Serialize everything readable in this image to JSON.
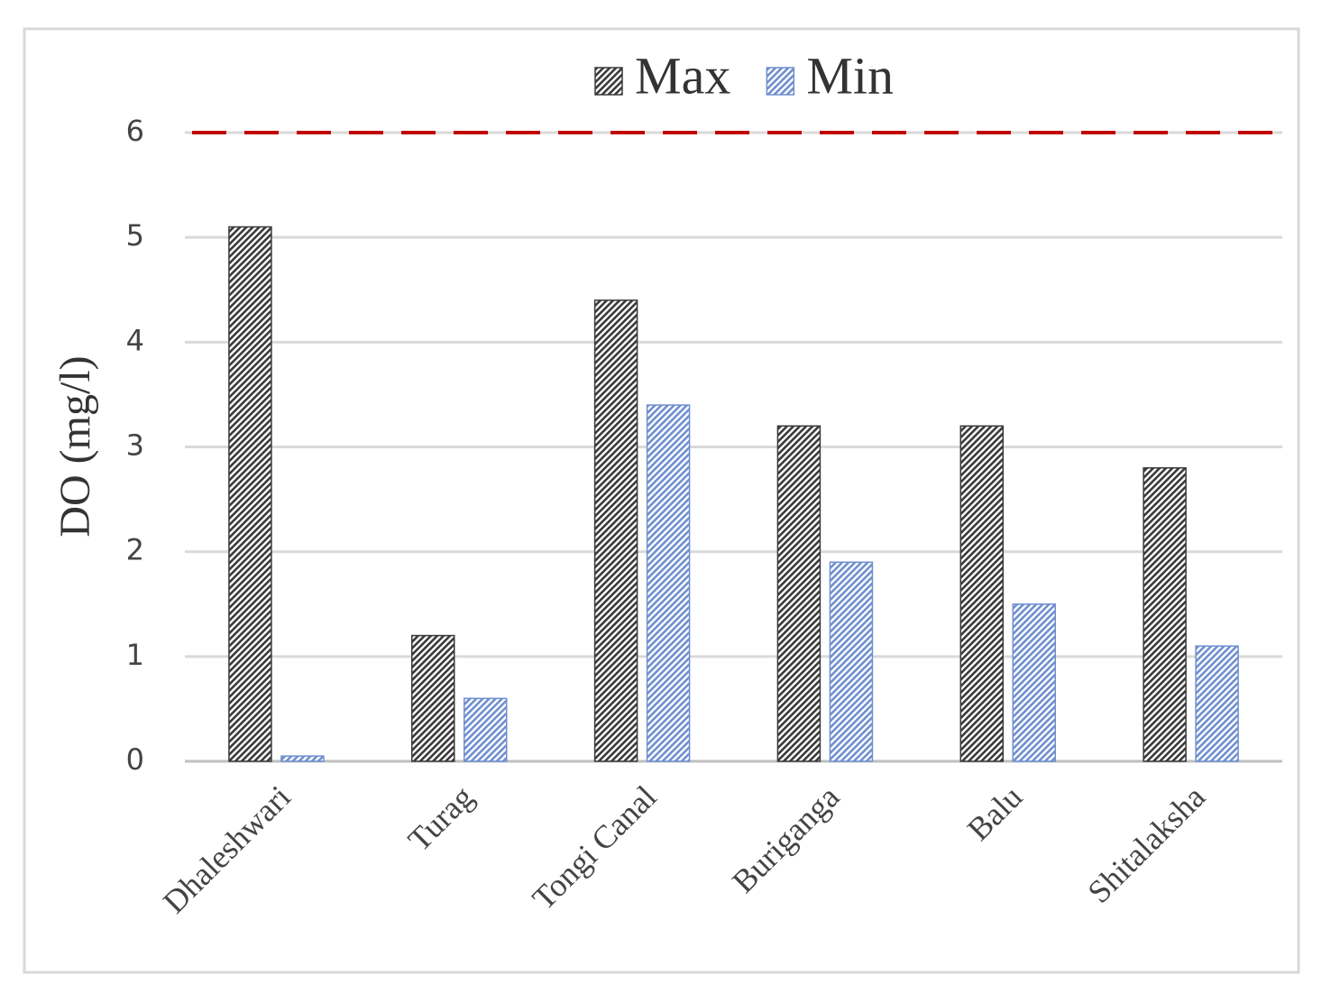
{
  "chart_data": {
    "type": "bar",
    "y_label": "DO (mg/l)",
    "categories": [
      "Dhaleshwari",
      "Turag",
      "Tongi Canal",
      "Buriganga",
      "Balu",
      "Shitalaksha"
    ],
    "series": [
      {
        "name": "Max",
        "color": "#3a3a3a",
        "values": [
          5.1,
          1.2,
          4.4,
          3.2,
          3.2,
          2.8
        ]
      },
      {
        "name": "Min",
        "color": "#6f8fcf",
        "values": [
          0.05,
          0.6,
          3.4,
          1.9,
          1.5,
          1.1
        ]
      }
    ],
    "reference_line": {
      "value": 6,
      "color": "#c00000"
    },
    "ylim": [
      0,
      6
    ],
    "yticks": [
      0,
      1,
      2,
      3,
      4,
      5,
      6
    ],
    "grid": true,
    "legend": "top"
  }
}
